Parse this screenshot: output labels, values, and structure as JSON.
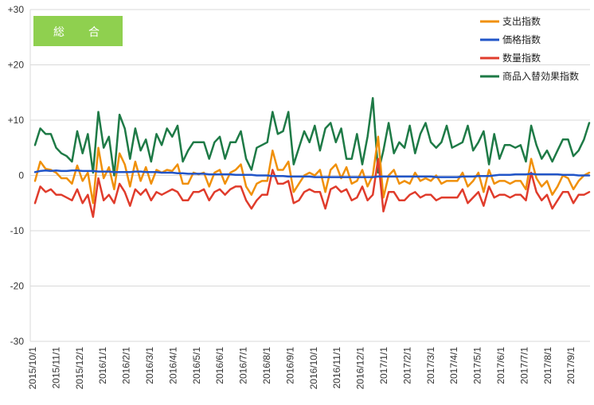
{
  "chart_data": {
    "type": "line",
    "title": "総　合",
    "ylim": [
      -30,
      30
    ],
    "yticks": [
      30,
      20,
      10,
      0,
      -10,
      -20,
      -30
    ],
    "ytick_labels": [
      "+30",
      "+20",
      "+10",
      "0",
      "-10",
      "-20",
      "-30"
    ],
    "x_tick_labels": [
      "2015/10/1",
      "2015/11/1",
      "2015/12/1",
      "2016/1/1",
      "2016/2/1",
      "2016/3/1",
      "2016/4/1",
      "2016/5/1",
      "2016/6/1",
      "2016/7/1",
      "2016/8/1",
      "2016/9/1",
      "2016/10/1",
      "2016/11/1",
      "2016/12/1",
      "2017/1/1",
      "2017/2/1",
      "2017/3/1",
      "2017/4/1",
      "2017/5/1",
      "2017/6/1",
      "2017/7/1",
      "2017/8/1",
      "2017/9/1"
    ],
    "grid": "horizontal",
    "legend_position": "top-right",
    "series": [
      {
        "name": "支出指数",
        "color": "#F0900A",
        "values": [
          -1.0,
          2.5,
          1.2,
          1.0,
          0.5,
          -0.5,
          -0.5,
          -1.5,
          1.8,
          -1.0,
          0.5,
          -5.0,
          5.0,
          -0.5,
          1.5,
          -2.5,
          4.0,
          2.0,
          -2.0,
          2.5,
          -1.0,
          1.5,
          -1.5,
          1.0,
          0.5,
          1.0,
          0.8,
          2.0,
          -1.5,
          -1.5,
          0.5,
          0.2,
          0.5,
          -2.0,
          0.5,
          1.0,
          -1.5,
          0.5,
          1.0,
          2.0,
          -2.0,
          -3.5,
          -1.5,
          -1.0,
          -1.0,
          4.5,
          1.0,
          1.0,
          2.5,
          -3.0,
          -1.5,
          0.0,
          0.5,
          0.0,
          1.0,
          -3.0,
          1.0,
          2.0,
          -0.5,
          1.5,
          -1.5,
          -1.0,
          1.0,
          -2.0,
          0.0,
          7.0,
          -4.0,
          0.0,
          1.0,
          -1.5,
          -1.0,
          -1.5,
          0.5,
          -1.0,
          -0.5,
          -1.0,
          0.0,
          -1.5,
          -1.0,
          -1.0,
          -1.0,
          0.5,
          -2.0,
          -1.0,
          0.5,
          -3.0,
          1.0,
          -1.5,
          -1.0,
          -1.0,
          -1.5,
          -1.0,
          -1.0,
          -2.5,
          3.0,
          -0.5,
          -2.0,
          -1.0,
          -3.5,
          -2.0,
          0.0,
          -0.5,
          -2.5,
          -1.0,
          0.0,
          0.5
        ],
        "smooth": false
      },
      {
        "name": "価格指数",
        "color": "#2155C8",
        "values": [
          0.6,
          0.8,
          0.9,
          0.8,
          0.9,
          0.8,
          0.8,
          0.9,
          0.9,
          0.8,
          0.8,
          0.8,
          0.7,
          0.7,
          0.7,
          0.6,
          0.6,
          0.6,
          0.6,
          0.7,
          0.7,
          0.6,
          0.6,
          0.6,
          0.5,
          0.5,
          0.5,
          0.4,
          0.4,
          0.3,
          0.3,
          0.3,
          0.3,
          0.2,
          0.2,
          0.2,
          0.2,
          0.2,
          0.1,
          0.1,
          0.1,
          0.1,
          0.0,
          0.0,
          0.0,
          -0.1,
          -0.1,
          -0.1,
          -0.2,
          -0.2,
          -0.2,
          -0.2,
          -0.2,
          -0.3,
          -0.3,
          -0.3,
          -0.3,
          -0.3,
          -0.3,
          -0.3,
          -0.3,
          -0.3,
          -0.3,
          -0.3,
          -0.3,
          -0.2,
          -0.2,
          -0.2,
          -0.2,
          -0.2,
          -0.2,
          -0.2,
          -0.2,
          -0.2,
          -0.2,
          -0.2,
          -0.3,
          -0.3,
          -0.3,
          -0.3,
          -0.3,
          -0.2,
          -0.2,
          -0.2,
          -0.1,
          -0.1,
          -0.1,
          0.0,
          0.1,
          0.1,
          0.1,
          0.2,
          0.2,
          0.2,
          0.3,
          0.2,
          0.2,
          0.2,
          0.2,
          0.2,
          0.1,
          0.1,
          0.1,
          0.0,
          0.0,
          0.0
        ],
        "smooth": true
      },
      {
        "name": "数量指数",
        "color": "#E03C2C",
        "values": [
          -5.0,
          -2.0,
          -3.0,
          -2.5,
          -3.5,
          -3.5,
          -4.0,
          -4.5,
          -2.5,
          -5.0,
          -3.5,
          -7.5,
          -0.5,
          -4.5,
          -3.5,
          -5.0,
          -1.5,
          -3.0,
          -5.5,
          -2.5,
          -3.5,
          -2.5,
          -4.5,
          -3.0,
          -3.5,
          -3.0,
          -2.5,
          -3.0,
          -4.5,
          -4.5,
          -3.0,
          -3.0,
          -2.5,
          -4.5,
          -3.0,
          -2.5,
          -3.5,
          -2.5,
          -2.0,
          -2.0,
          -4.5,
          -6.0,
          -4.5,
          -3.5,
          -3.5,
          1.0,
          -1.5,
          -1.5,
          -1.0,
          -5.0,
          -4.5,
          -3.0,
          -2.5,
          -3.0,
          -3.0,
          -6.0,
          -2.5,
          -2.0,
          -3.0,
          -2.5,
          -4.5,
          -4.0,
          -2.0,
          -4.5,
          -3.5,
          3.0,
          -6.5,
          -3.0,
          -3.0,
          -4.5,
          -4.5,
          -3.5,
          -3.0,
          -4.0,
          -3.5,
          -3.5,
          -4.5,
          -4.0,
          -4.0,
          -4.0,
          -4.0,
          -2.5,
          -5.0,
          -4.0,
          -3.0,
          -5.5,
          -2.0,
          -4.0,
          -3.5,
          -3.5,
          -4.0,
          -3.5,
          -3.5,
          -4.5,
          0.5,
          -3.0,
          -4.5,
          -3.5,
          -6.0,
          -4.5,
          -3.0,
          -3.0,
          -5.0,
          -3.5,
          -3.5,
          -3.0
        ],
        "smooth": false
      },
      {
        "name": "商品入替効果指数",
        "color": "#1E7A46",
        "values": [
          5.5,
          8.5,
          7.5,
          7.5,
          5.0,
          4.0,
          3.5,
          2.5,
          8.0,
          4.0,
          7.5,
          0.5,
          11.5,
          5.0,
          7.0,
          0.0,
          11.0,
          8.5,
          3.0,
          8.5,
          4.5,
          6.5,
          2.5,
          7.5,
          5.5,
          8.5,
          7.0,
          9.0,
          2.5,
          4.5,
          6.0,
          6.0,
          6.0,
          3.0,
          6.0,
          7.0,
          3.0,
          6.0,
          6.0,
          8.0,
          3.0,
          1.0,
          5.0,
          5.5,
          6.0,
          11.5,
          7.5,
          8.0,
          11.5,
          2.0,
          5.0,
          8.0,
          6.0,
          9.0,
          4.5,
          8.5,
          9.5,
          6.0,
          8.5,
          3.0,
          3.0,
          7.5,
          2.0,
          7.0,
          14.0,
          0.5,
          4.5,
          9.5,
          4.0,
          6.0,
          5.0,
          9.0,
          4.0,
          7.5,
          9.5,
          6.0,
          5.0,
          6.0,
          9.0,
          5.0,
          5.5,
          6.0,
          9.0,
          4.5,
          6.0,
          8.0,
          2.0,
          7.5,
          3.0,
          5.5,
          5.5,
          5.0,
          5.5,
          2.5,
          9.0,
          5.5,
          3.0,
          4.5,
          2.5,
          4.5,
          6.5,
          6.5,
          3.5,
          4.5,
          6.5,
          9.5
        ],
        "smooth": false
      }
    ]
  }
}
